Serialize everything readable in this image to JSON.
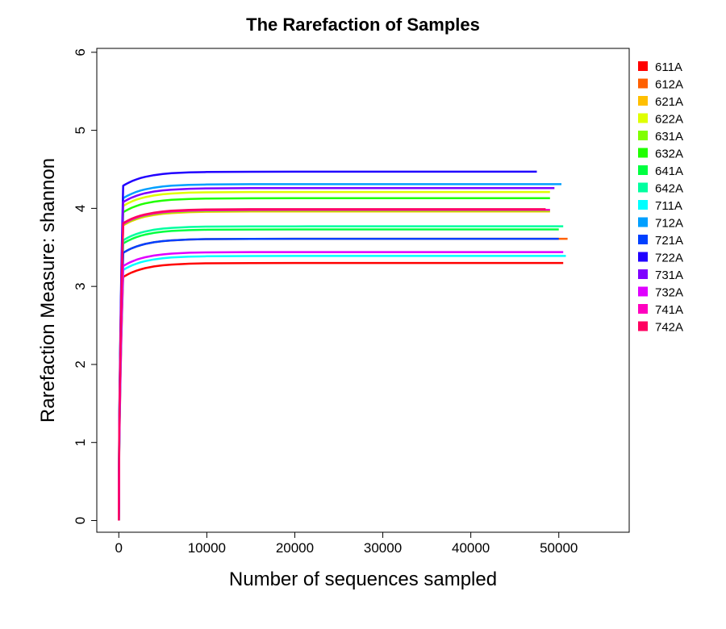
{
  "chart_data": {
    "type": "line",
    "title": "The Rarefaction of Samples",
    "xlabel": "Number of sequences sampled",
    "ylabel": "Rarefaction Measure: shannon",
    "xlim": [
      -2500,
      58000
    ],
    "ylim": [
      -0.15,
      6.05
    ],
    "xticks": [
      0,
      10000,
      20000,
      30000,
      40000,
      50000
    ],
    "yticks": [
      0,
      1,
      2,
      3,
      4,
      5,
      6
    ],
    "grid": false,
    "legend_position": "right",
    "series": [
      {
        "name": "611A",
        "color": "#ff0000",
        "x_max": 50500,
        "plateau": 3.3
      },
      {
        "name": "612A",
        "color": "#ff6000",
        "x_max": 51000,
        "plateau": 3.61
      },
      {
        "name": "621A",
        "color": "#ffbf00",
        "x_max": 49000,
        "plateau": 3.96
      },
      {
        "name": "622A",
        "color": "#dfff00",
        "x_max": 49000,
        "plateau": 4.21
      },
      {
        "name": "631A",
        "color": "#80ff00",
        "x_max": 49000,
        "plateau": 3.97
      },
      {
        "name": "632A",
        "color": "#20ff00",
        "x_max": 49000,
        "plateau": 4.13
      },
      {
        "name": "641A",
        "color": "#00ff40",
        "x_max": 50000,
        "plateau": 3.73
      },
      {
        "name": "642A",
        "color": "#00ff9f",
        "x_max": 50500,
        "plateau": 3.77
      },
      {
        "name": "711A",
        "color": "#00ffff",
        "x_max": 50800,
        "plateau": 3.39
      },
      {
        "name": "712A",
        "color": "#009fff",
        "x_max": 50300,
        "plateau": 4.31
      },
      {
        "name": "721A",
        "color": "#0040ff",
        "x_max": 50000,
        "plateau": 3.61
      },
      {
        "name": "722A",
        "color": "#2000ff",
        "x_max": 47500,
        "plateau": 4.47
      },
      {
        "name": "731A",
        "color": "#7f00ff",
        "x_max": 49500,
        "plateau": 4.26
      },
      {
        "name": "732A",
        "color": "#df00ff",
        "x_max": 50500,
        "plateau": 3.44
      },
      {
        "name": "741A",
        "color": "#ff00bf",
        "x_max": 49000,
        "plateau": 3.98
      },
      {
        "name": "742A",
        "color": "#ff0060",
        "x_max": 48500,
        "plateau": 3.99
      }
    ]
  }
}
